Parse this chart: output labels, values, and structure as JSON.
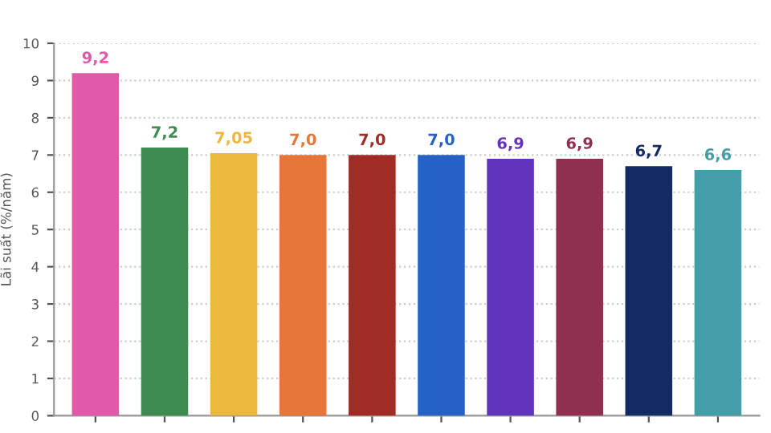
{
  "chart_data": {
    "type": "bar",
    "categories": [
      null,
      null,
      null,
      null,
      null,
      null,
      null,
      null,
      null,
      null
    ],
    "values": [
      9.2,
      7.2,
      7.05,
      7.0,
      7.0,
      7.0,
      6.9,
      6.9,
      6.7,
      6.6
    ],
    "value_labels": [
      "9,2",
      "7,2",
      "7,05",
      "7,0",
      "7,0",
      "7,0",
      "6,9",
      "6,9",
      "6,7",
      "6,6"
    ],
    "colors": [
      "#e05aa8",
      "#3e8c52",
      "#ecb83e",
      "#e6763a",
      "#a02c26",
      "#2662c6",
      "#6433bc",
      "#8f3050",
      "#132b62",
      "#449ea8"
    ],
    "ylabel": "Lãi suất (%/năm)",
    "ylim": [
      0,
      10
    ],
    "yticks": [
      0,
      1,
      2,
      3,
      4,
      5,
      6,
      7,
      8,
      9,
      10
    ],
    "grid": "y"
  }
}
